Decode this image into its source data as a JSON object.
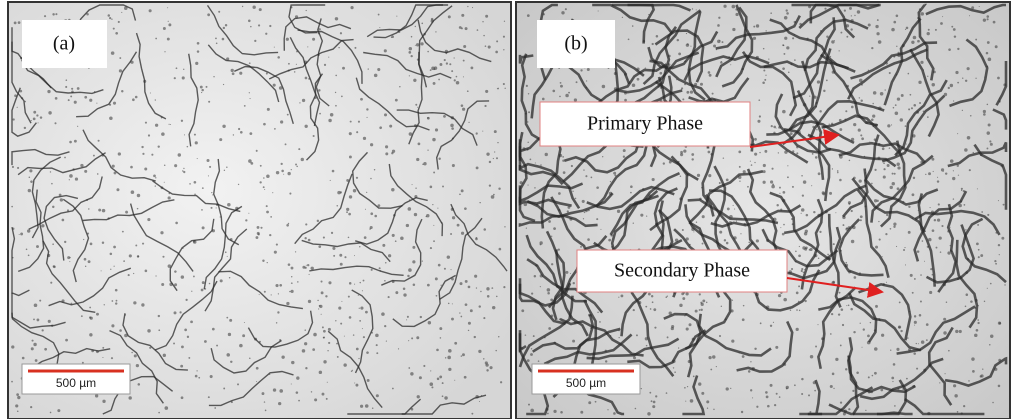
{
  "panels": [
    {
      "label": "(a)",
      "scale_bar": "500 µm"
    },
    {
      "label": "(b)",
      "scale_bar": "500 µm",
      "annotations": [
        "Primary Phase",
        "Secondary Phase"
      ]
    }
  ]
}
